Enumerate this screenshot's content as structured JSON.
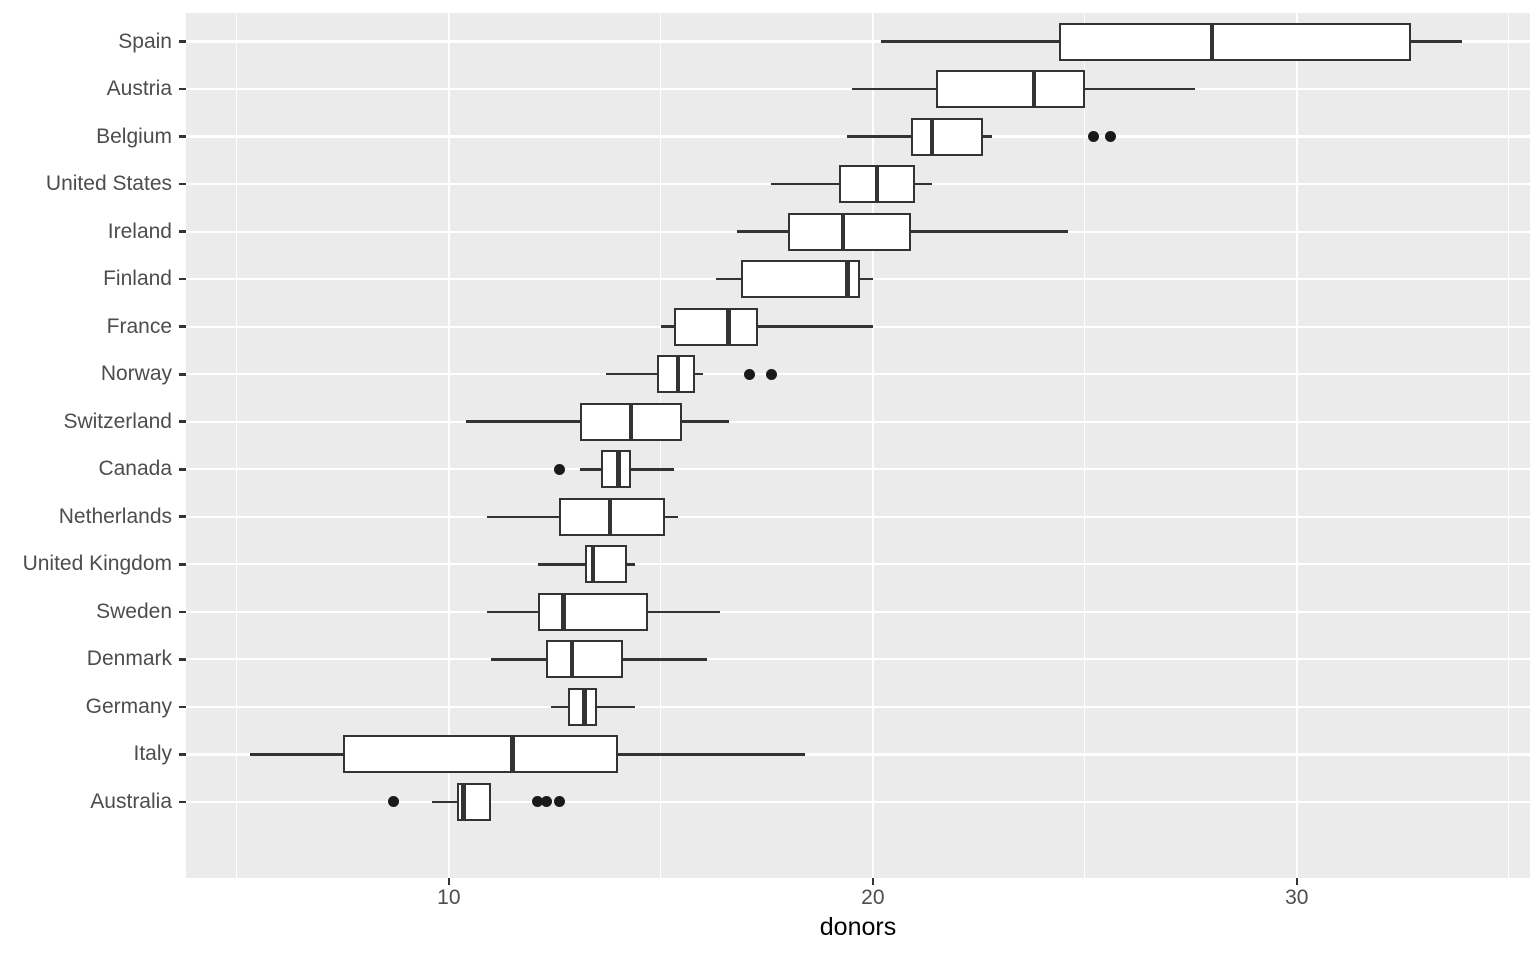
{
  "chart_data": {
    "type": "boxplot",
    "orientation": "horizontal",
    "title": "",
    "xlabel": "donors",
    "ylabel": "",
    "x_ticks": [
      10,
      20,
      30
    ],
    "x_minor_gridlines": [
      5,
      15,
      25,
      35
    ],
    "xlim": [
      3.8,
      35.5
    ],
    "grid": true,
    "legend": "none",
    "categories": [
      "Spain",
      "Austria",
      "Belgium",
      "United States",
      "Ireland",
      "Finland",
      "France",
      "Norway",
      "Switzerland",
      "Canada",
      "Netherlands",
      "United Kingdom",
      "Sweden",
      "Denmark",
      "Germany",
      "Italy",
      "Australia"
    ],
    "series": [
      {
        "country": "Spain",
        "whisker_low": 20.2,
        "q1": 24.4,
        "median": 28.0,
        "q3": 32.7,
        "whisker_high": 33.9,
        "outliers": []
      },
      {
        "country": "Austria",
        "whisker_low": 19.5,
        "q1": 21.5,
        "median": 23.8,
        "q3": 25.0,
        "whisker_high": 27.6,
        "outliers": []
      },
      {
        "country": "Belgium",
        "whisker_low": 19.4,
        "q1": 20.9,
        "median": 21.4,
        "q3": 22.6,
        "whisker_high": 22.8,
        "outliers": [
          25.2,
          25.6
        ]
      },
      {
        "country": "United States",
        "whisker_low": 17.6,
        "q1": 19.2,
        "median": 20.1,
        "q3": 21.0,
        "whisker_high": 21.4,
        "outliers": []
      },
      {
        "country": "Ireland",
        "whisker_low": 16.8,
        "q1": 18.0,
        "median": 19.3,
        "q3": 20.9,
        "whisker_high": 24.6,
        "outliers": []
      },
      {
        "country": "Finland",
        "whisker_low": 16.3,
        "q1": 16.9,
        "median": 19.4,
        "q3": 19.7,
        "whisker_high": 20.0,
        "outliers": []
      },
      {
        "country": "France",
        "whisker_low": 15.0,
        "q1": 15.3,
        "median": 16.6,
        "q3": 17.3,
        "whisker_high": 20.0,
        "outliers": []
      },
      {
        "country": "Norway",
        "whisker_low": 13.7,
        "q1": 14.9,
        "median": 15.4,
        "q3": 15.8,
        "whisker_high": 16.0,
        "outliers": [
          17.1,
          17.6
        ]
      },
      {
        "country": "Switzerland",
        "whisker_low": 10.4,
        "q1": 13.1,
        "median": 14.3,
        "q3": 15.5,
        "whisker_high": 16.6,
        "outliers": []
      },
      {
        "country": "Canada",
        "whisker_low": 13.1,
        "q1": 13.6,
        "median": 14.0,
        "q3": 14.3,
        "whisker_high": 15.3,
        "outliers": [
          12.6
        ]
      },
      {
        "country": "Netherlands",
        "whisker_low": 10.9,
        "q1": 12.6,
        "median": 13.8,
        "q3": 15.1,
        "whisker_high": 15.4,
        "outliers": []
      },
      {
        "country": "United Kingdom",
        "whisker_low": 12.1,
        "q1": 13.2,
        "median": 13.4,
        "q3": 14.2,
        "whisker_high": 14.4,
        "outliers": []
      },
      {
        "country": "Sweden",
        "whisker_low": 10.9,
        "q1": 12.1,
        "median": 12.7,
        "q3": 14.7,
        "whisker_high": 16.4,
        "outliers": []
      },
      {
        "country": "Denmark",
        "whisker_low": 11.0,
        "q1": 12.3,
        "median": 12.9,
        "q3": 14.1,
        "whisker_high": 16.1,
        "outliers": []
      },
      {
        "country": "Germany",
        "whisker_low": 12.4,
        "q1": 12.8,
        "median": 13.2,
        "q3": 13.5,
        "whisker_high": 14.4,
        "outliers": []
      },
      {
        "country": "Italy",
        "whisker_low": 5.3,
        "q1": 7.5,
        "median": 11.5,
        "q3": 14.0,
        "whisker_high": 18.4,
        "outliers": []
      },
      {
        "country": "Australia",
        "whisker_low": 9.6,
        "q1": 10.2,
        "median": 10.35,
        "q3": 11.0,
        "whisker_high": 11.0,
        "outliers": [
          8.7,
          12.1,
          12.3,
          12.6
        ]
      }
    ]
  },
  "colors": {
    "panel_background": "#EBEBEB",
    "gridline": "#FFFFFF",
    "box_border": "#333333",
    "box_fill": "#FFFFFF",
    "median": "#333333",
    "outlier": "#1A1A1A",
    "tick_label": "#4D4D4D",
    "axis_title": "#000000"
  }
}
